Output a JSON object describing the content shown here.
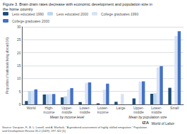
{
  "chart_data": {
    "type": "bar",
    "title": "Figure 3. Brain drain rates decrease with economic development and population size in\nthe home country",
    "ylabel": "Proportion of nationals living abroad (%)",
    "categories": [
      "World",
      "High-\nincome",
      "Upper-\nmiddle",
      "Lower-\nmiddle",
      "Lower-\nincome",
      "Large",
      "Upper-\nmiddle",
      "Lower-\nmiddle",
      "Small"
    ],
    "series": [
      {
        "name": "Less educated 1990",
        "color": "#1F4E79",
        "values": [
          1.3,
          3.8,
          2.7,
          0.9,
          0.4,
          1.0,
          2.3,
          4.1,
          6.4
        ]
      },
      {
        "name": "Less educated 2000",
        "color": "#BDD7EE",
        "values": [
          5.2,
          3.9,
          3.1,
          0.0,
          0.0,
          0.0,
          0.0,
          4.3,
          0.0
        ]
      },
      {
        "name": "College graduates 1990",
        "color": "#D9E2F3",
        "values": [
          5.3,
          4.0,
          5.7,
          8.3,
          5.7,
          4.0,
          8.8,
          14.3,
          26.5
        ]
      },
      {
        "name": "College graduates 2000",
        "color": "#4472C4",
        "values": [
          5.8,
          4.0,
          6.3,
          8.5,
          8.0,
          0.0,
          8.9,
          14.8,
          28.3
        ]
      }
    ],
    "ylim": [
      0,
      30
    ],
    "yticks": [
      0,
      5,
      10,
      15,
      20,
      25,
      30
    ],
    "grid": true,
    "legend": "top",
    "annotations": [
      "Mean by income level",
      "Mean by population size",
      "Source: Docquier, F., B. L. Lowell, and A. Marfouk. \"A gendered assessment of highly skilled emigration.\" Population\nand Development Review 35.2 (2009): 297-322 [1].",
      "IZA",
      "World of Labor"
    ]
  }
}
